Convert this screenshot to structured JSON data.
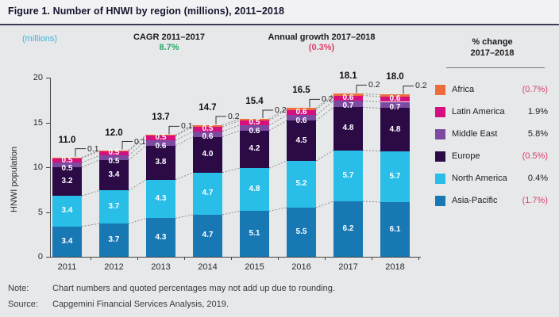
{
  "figure": {
    "title": "Figure 1. Number of HNWI by region (millions), 2011–2018"
  },
  "header": {
    "axis_unit_label": "(millions)",
    "cagr": {
      "label": "CAGR 2011–2017",
      "value": "8.7%"
    },
    "annual_growth": {
      "label": "Annual growth 2017–2018",
      "value": "(0.3%)"
    }
  },
  "legend": {
    "header_line1": "% change",
    "header_line2": "2017–2018",
    "items": [
      {
        "name": "Africa",
        "change": "(0.7%)",
        "negative": true,
        "color": "#ED6C3C"
      },
      {
        "name": "Latin America",
        "change": "1.9%",
        "negative": false,
        "color": "#D50F7D"
      },
      {
        "name": "Middle East",
        "change": "5.8%",
        "negative": false,
        "color": "#7C4BA1"
      },
      {
        "name": "Europe",
        "change": "(0.5%)",
        "negative": true,
        "color": "#2B0A46"
      },
      {
        "name": "North America",
        "change": "0.4%",
        "negative": false,
        "color": "#29BEE7"
      },
      {
        "name": "Asia-Pacific",
        "change": "(1.7%)",
        "negative": true,
        "color": "#1878B4"
      }
    ]
  },
  "chart_data": {
    "type": "bar",
    "stacked": true,
    "title": "Number of HNWI by region (millions), 2011–2018",
    "categories": [
      "2011",
      "2012",
      "2013",
      "2014",
      "2015",
      "2016",
      "2017",
      "2018"
    ],
    "series": [
      {
        "name": "Asia-Pacific",
        "color": "#1878B4",
        "values": [
          3.4,
          3.7,
          4.3,
          4.7,
          5.1,
          5.5,
          6.2,
          6.1
        ]
      },
      {
        "name": "North America",
        "color": "#29BEE7",
        "values": [
          3.4,
          3.7,
          4.3,
          4.7,
          4.8,
          5.2,
          5.7,
          5.7
        ]
      },
      {
        "name": "Europe",
        "color": "#2B0A46",
        "values": [
          3.2,
          3.4,
          3.8,
          4.0,
          4.2,
          4.5,
          4.8,
          4.8
        ]
      },
      {
        "name": "Middle East",
        "color": "#7C4BA1",
        "values": [
          0.5,
          0.5,
          0.6,
          0.6,
          0.6,
          0.6,
          0.7,
          0.7
        ]
      },
      {
        "name": "Latin America",
        "color": "#D50F7D",
        "values": [
          0.5,
          0.5,
          0.5,
          0.5,
          0.5,
          0.6,
          0.6,
          0.6
        ]
      },
      {
        "name": "Africa",
        "color": "#ED6C3C",
        "values": [
          0.1,
          0.1,
          0.1,
          0.2,
          0.2,
          0.2,
          0.2,
          0.2
        ],
        "label_style": "callout"
      }
    ],
    "totals": [
      "11.0",
      "12.0",
      "13.7",
      "14.7",
      "15.4",
      "16.5",
      "18.1",
      "18.0"
    ],
    "ylabel": "HNWI population",
    "ylim": [
      0,
      20
    ],
    "yticks": [
      0,
      5,
      10,
      15,
      20
    ],
    "grid": false,
    "legend_position": "right"
  },
  "footer": {
    "note_label": "Note:",
    "note": "Chart numbers and quoted percentages may not add up due to rounding.",
    "source_label": "Source:",
    "source": "Capgemini Financial Services Analysis, 2019."
  }
}
